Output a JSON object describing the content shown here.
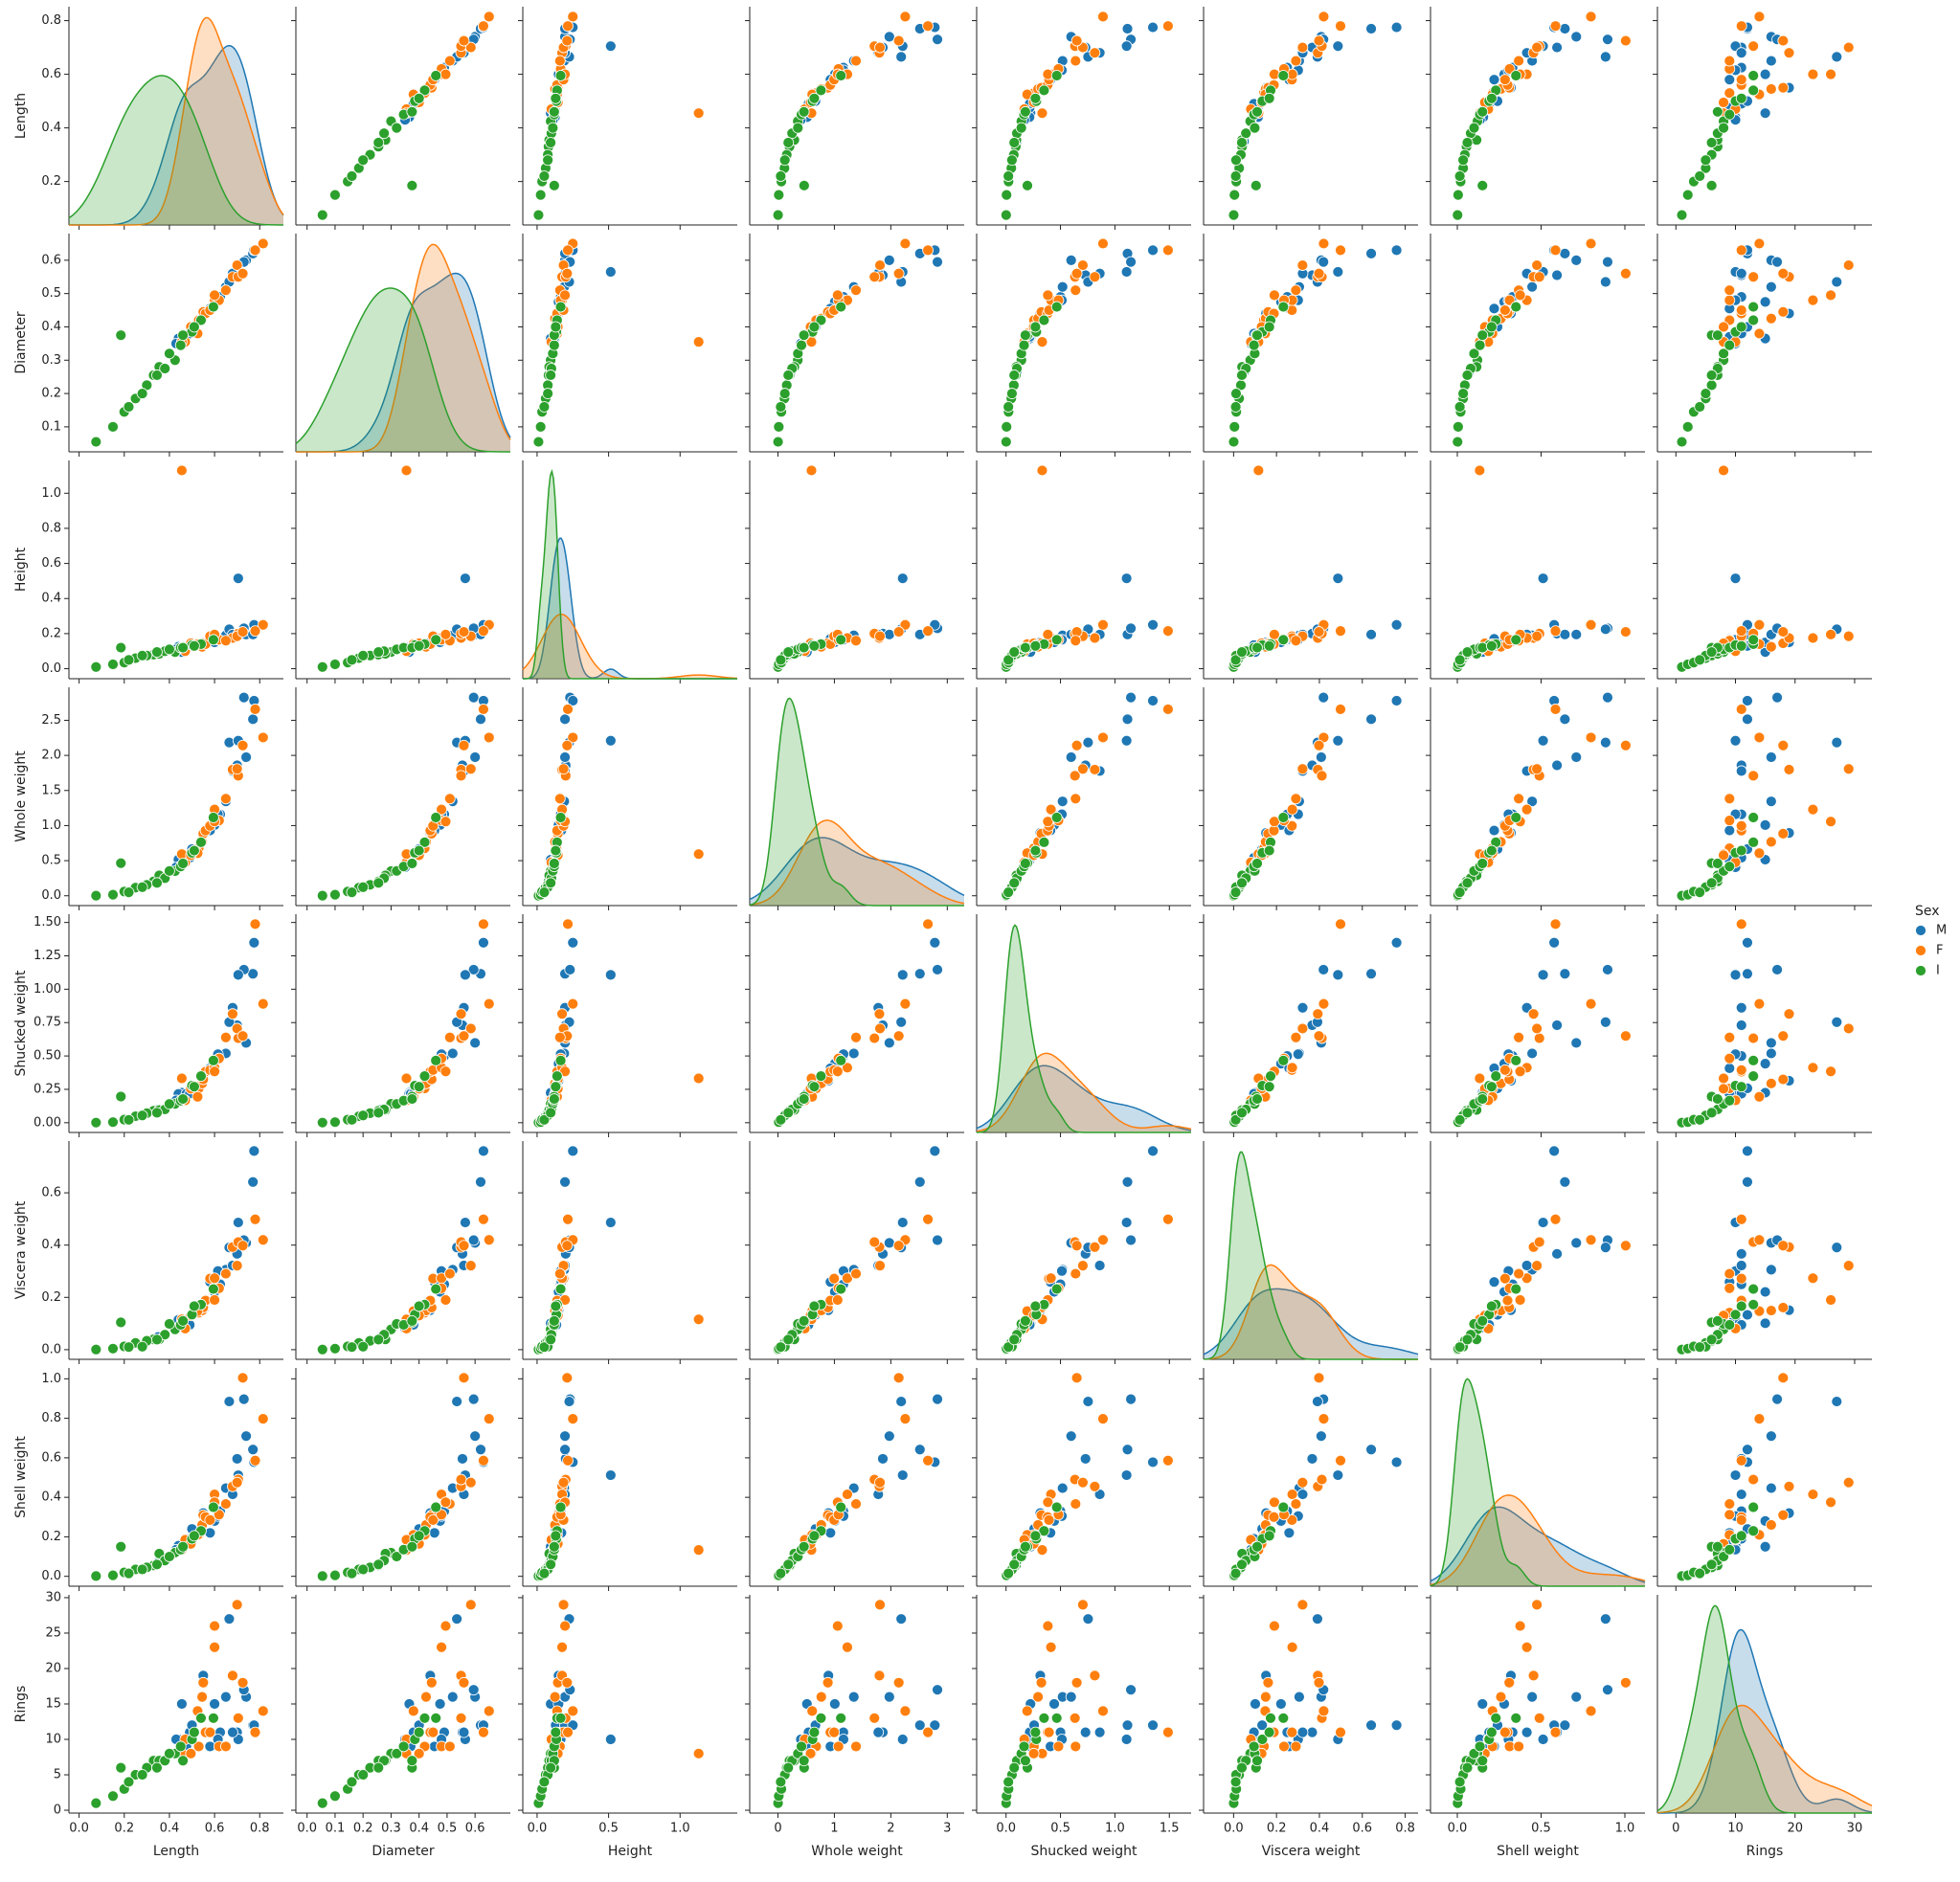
{
  "chart_data": {
    "type": "pairplot",
    "legend_title": "Sex",
    "legend_position": "right",
    "variables": [
      {
        "name": "Length",
        "xlim": [
          -0.045,
          0.905
        ],
        "ylim": [
          0.038,
          0.852
        ],
        "xticks": [
          {
            "value": 0,
            "label": "0.0"
          },
          0.2,
          0.4,
          0.6,
          0.8
        ],
        "yticks": [
          0.2,
          0.4,
          0.6,
          0.8
        ]
      },
      {
        "name": "Diameter",
        "xlim": [
          -0.04,
          0.726
        ],
        "ylim": [
          0.025,
          0.68
        ],
        "xticks": [
          {
            "value": 0,
            "label": "0.0"
          },
          0.1,
          0.2,
          0.3,
          0.4,
          0.5,
          0.6
        ],
        "yticks": [
          0.1,
          0.2,
          0.3,
          0.4,
          0.5,
          0.6
        ]
      },
      {
        "name": "Height",
        "xlim": [
          -0.1,
          1.4
        ],
        "ylim": [
          -0.057,
          1.187
        ],
        "xticks": [
          {
            "value": 0,
            "label": "0.0"
          },
          0.5,
          {
            "value": 1,
            "label": "1.0"
          }
        ],
        "yticks": [
          {
            "value": 0,
            "label": "0.0"
          },
          0.2,
          0.4,
          0.6,
          0.8,
          {
            "value": 1,
            "label": "1.0"
          }
        ]
      },
      {
        "name": "Whole weight",
        "xlim": [
          -0.5,
          3.3
        ],
        "ylim": [
          -0.14,
          2.97
        ],
        "xticks": [
          0,
          1,
          2,
          3
        ],
        "yticks": [
          {
            "value": 0,
            "label": "0.0"
          },
          0.5,
          {
            "value": 1,
            "label": "1.0"
          },
          1.5,
          {
            "value": 2,
            "label": "2.0"
          },
          2.5
        ]
      },
      {
        "name": "Shucked weight",
        "xlim": [
          -0.27,
          1.7
        ],
        "ylim": [
          -0.073,
          1.562
        ],
        "xticks": [
          {
            "value": 0,
            "label": "0.0"
          },
          0.5,
          {
            "value": 1,
            "label": "1.0"
          },
          1.5
        ],
        "yticks": [
          {
            "value": 0,
            "label": "0.00"
          },
          0.25,
          {
            "value": 0.5,
            "label": "0.50"
          },
          0.75,
          {
            "value": 1,
            "label": "1.00"
          },
          1.25,
          {
            "value": 1.5,
            "label": "1.50"
          }
        ]
      },
      {
        "name": "Viscera weight",
        "xlim": [
          -0.14,
          0.86
        ],
        "ylim": [
          -0.037,
          0.798
        ],
        "xticks": [
          {
            "value": 0,
            "label": "0.0"
          },
          0.2,
          0.4,
          0.6,
          0.8
        ],
        "yticks": [
          {
            "value": 0,
            "label": "0.0"
          },
          0.2,
          0.4,
          0.6
        ]
      },
      {
        "name": "Shell weight",
        "xlim": [
          -0.16,
          1.12
        ],
        "ylim": [
          -0.05,
          1.055
        ],
        "xticks": [
          {
            "value": 0,
            "label": "0.0"
          },
          0.5,
          {
            "value": 1,
            "label": "1.0"
          }
        ],
        "yticks": [
          {
            "value": 0,
            "label": "0.0"
          },
          0.2,
          0.4,
          0.6,
          0.8,
          {
            "value": 1,
            "label": "1.0"
          }
        ]
      },
      {
        "name": "Rings",
        "xlim": [
          -3.1,
          32.9
        ],
        "ylim": [
          -0.4,
          30.4
        ],
        "xticks": [
          0,
          10,
          20,
          30
        ],
        "yticks": [
          0,
          5,
          10,
          15,
          20,
          25,
          30
        ]
      }
    ],
    "series": [
      {
        "name": "M",
        "color": "#1f77b4",
        "values": [
          [
            0.455,
            0.365,
            0.095,
            0.514,
            0.2245,
            0.101,
            0.15,
            15
          ],
          [
            0.35,
            0.265,
            0.09,
            0.2255,
            0.0995,
            0.0485,
            0.07,
            7
          ],
          [
            0.44,
            0.365,
            0.125,
            0.516,
            0.2155,
            0.114,
            0.155,
            10
          ],
          [
            0.475,
            0.37,
            0.125,
            0.5095,
            0.2165,
            0.1125,
            0.165,
            9
          ],
          [
            0.43,
            0.35,
            0.11,
            0.406,
            0.1675,
            0.081,
            0.135,
            10
          ],
          [
            0.49,
            0.38,
            0.135,
            0.5415,
            0.2175,
            0.095,
            0.19,
            11
          ],
          [
            0.5,
            0.4,
            0.13,
            0.6645,
            0.258,
            0.133,
            0.24,
            12
          ],
          [
            0.55,
            0.44,
            0.15,
            0.8945,
            0.3145,
            0.151,
            0.32,
            19
          ],
          [
            0.6,
            0.475,
            0.15,
            1.0075,
            0.4425,
            0.221,
            0.28,
            15
          ],
          [
            0.625,
            0.49,
            0.165,
            1.16,
            0.5,
            0.25,
            0.33,
            11
          ],
          [
            0.65,
            0.52,
            0.19,
            1.3445,
            0.519,
            0.306,
            0.4465,
            16
          ],
          [
            0.7,
            0.555,
            0.2,
            1.858,
            0.73,
            0.3665,
            0.595,
            11
          ],
          [
            0.74,
            0.6,
            0.195,
            1.974,
            0.598,
            0.4085,
            0.71,
            16
          ],
          [
            0.77,
            0.62,
            0.195,
            2.5155,
            1.1155,
            0.6415,
            0.642,
            12
          ],
          [
            0.73,
            0.595,
            0.23,
            2.8255,
            1.1465,
            0.419,
            0.897,
            17
          ],
          [
            0.665,
            0.535,
            0.225,
            2.1835,
            0.7535,
            0.391,
            0.885,
            27
          ],
          [
            0.705,
            0.565,
            0.515,
            2.21,
            1.1075,
            0.4865,
            0.512,
            10
          ],
          [
            0.58,
            0.455,
            0.17,
            0.93,
            0.408,
            0.259,
            0.22,
            9
          ],
          [
            0.615,
            0.48,
            0.165,
            1.1615,
            0.513,
            0.301,
            0.305,
            10
          ],
          [
            0.68,
            0.56,
            0.195,
            1.7775,
            0.861,
            0.322,
            0.415,
            11
          ],
          [
            0.775,
            0.63,
            0.25,
            2.7795,
            1.3485,
            0.76,
            0.578,
            12
          ]
        ]
      },
      {
        "name": "F",
        "color": "#ff7f0e",
        "values": [
          [
            0.53,
            0.42,
            0.135,
            0.677,
            0.2565,
            0.1415,
            0.21,
            9
          ],
          [
            0.545,
            0.425,
            0.125,
            0.768,
            0.294,
            0.1495,
            0.26,
            16
          ],
          [
            0.55,
            0.445,
            0.145,
            0.8845,
            0.3245,
            0.161,
            0.31,
            18
          ],
          [
            0.525,
            0.38,
            0.14,
            0.6065,
            0.194,
            0.1475,
            0.21,
            14
          ],
          [
            0.47,
            0.355,
            0.1,
            0.4755,
            0.1675,
            0.0805,
            0.185,
            10
          ],
          [
            0.56,
            0.44,
            0.14,
            0.9285,
            0.3825,
            0.188,
            0.3,
            11
          ],
          [
            0.58,
            0.45,
            0.185,
            0.9955,
            0.3945,
            0.272,
            0.285,
            11
          ],
          [
            0.68,
            0.55,
            0.175,
            1.798,
            0.815,
            0.3925,
            0.455,
            19
          ],
          [
            0.705,
            0.55,
            0.2,
            1.7095,
            0.633,
            0.4115,
            0.49,
            13
          ],
          [
            0.815,
            0.65,
            0.25,
            2.255,
            0.8905,
            0.42,
            0.7975,
            14
          ],
          [
            0.78,
            0.63,
            0.215,
            2.657,
            1.488,
            0.4985,
            0.586,
            11
          ],
          [
            0.455,
            0.355,
            1.13,
            0.594,
            0.332,
            0.116,
            0.1335,
            8
          ],
          [
            0.7,
            0.585,
            0.185,
            1.8075,
            0.7055,
            0.3215,
            0.475,
            29
          ],
          [
            0.6,
            0.48,
            0.175,
            1.229,
            0.4125,
            0.2735,
            0.415,
            23
          ],
          [
            0.725,
            0.56,
            0.21,
            2.141,
            0.65,
            0.398,
            1.005,
            18
          ],
          [
            0.62,
            0.48,
            0.165,
            1.0725,
            0.4815,
            0.235,
            0.312,
            9
          ],
          [
            0.65,
            0.51,
            0.16,
            1.3835,
            0.6385,
            0.2905,
            0.3665,
            9
          ],
          [
            0.495,
            0.4,
            0.145,
            0.578,
            0.2545,
            0.1305,
            0.1645,
            8
          ],
          [
            0.6,
            0.495,
            0.195,
            1.0575,
            0.384,
            0.19,
            0.375,
            26
          ]
        ]
      },
      {
        "name": "I",
        "color": "#2ca02c",
        "values": [
          [
            0.33,
            0.255,
            0.08,
            0.205,
            0.0895,
            0.0395,
            0.055,
            7
          ],
          [
            0.425,
            0.3,
            0.095,
            0.3515,
            0.141,
            0.0775,
            0.12,
            8
          ],
          [
            0.075,
            0.055,
            0.01,
            0.002,
            0.001,
            0.0005,
            0.0015,
            1
          ],
          [
            0.15,
            0.1,
            0.025,
            0.015,
            0.0045,
            0.004,
            0.005,
            2
          ],
          [
            0.2,
            0.145,
            0.035,
            0.0605,
            0.023,
            0.0125,
            0.02,
            3
          ],
          [
            0.25,
            0.185,
            0.06,
            0.1155,
            0.0485,
            0.026,
            0.035,
            5
          ],
          [
            0.185,
            0.375,
            0.12,
            0.4645,
            0.196,
            0.1045,
            0.15,
            6
          ],
          [
            0.3,
            0.225,
            0.075,
            0.156,
            0.0715,
            0.034,
            0.045,
            6
          ],
          [
            0.355,
            0.28,
            0.085,
            0.2905,
            0.095,
            0.0395,
            0.115,
            7
          ],
          [
            0.38,
            0.275,
            0.1,
            0.2505,
            0.0995,
            0.0575,
            0.08,
            7
          ],
          [
            0.4,
            0.32,
            0.11,
            0.3535,
            0.1405,
            0.0985,
            0.1,
            8
          ],
          [
            0.45,
            0.345,
            0.12,
            0.4165,
            0.1655,
            0.095,
            0.135,
            9
          ],
          [
            0.5,
            0.385,
            0.135,
            0.6125,
            0.278,
            0.134,
            0.19,
            10
          ],
          [
            0.54,
            0.42,
            0.14,
            0.7625,
            0.349,
            0.1725,
            0.23,
            13
          ],
          [
            0.28,
            0.2,
            0.075,
            0.1225,
            0.0545,
            0.0115,
            0.035,
            5
          ],
          [
            0.46,
            0.375,
            0.12,
            0.4605,
            0.1775,
            0.11,
            0.15,
            7
          ],
          [
            0.595,
            0.46,
            0.165,
            1.115,
            0.466,
            0.232,
            0.35,
            13
          ],
          [
            0.22,
            0.16,
            0.05,
            0.049,
            0.0215,
            0.01,
            0.015,
            4
          ],
          [
            0.345,
            0.255,
            0.095,
            0.183,
            0.075,
            0.0385,
            0.06,
            6
          ],
          [
            0.51,
            0.4,
            0.13,
            0.6435,
            0.27,
            0.1665,
            0.205,
            11
          ]
        ]
      }
    ]
  }
}
